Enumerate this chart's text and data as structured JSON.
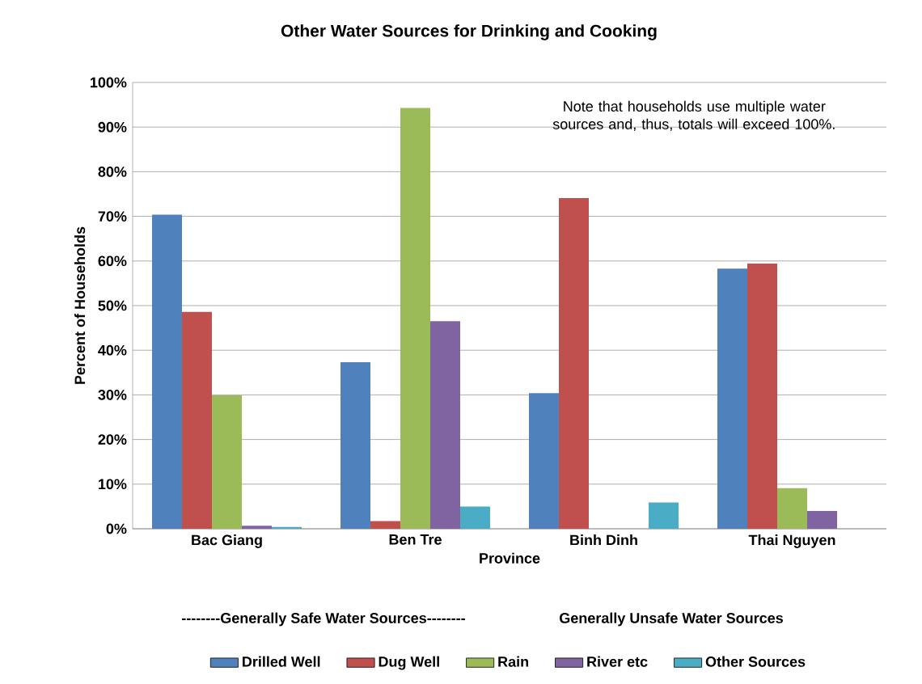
{
  "chart_data": {
    "type": "bar",
    "title": "Other Water Sources for Drinking and Cooking",
    "xlabel": "Province",
    "ylabel": "Percent of Households",
    "categories": [
      "Bac Giang",
      "Ben Tre",
      "Binh Dinh",
      "Thai Nguyen"
    ],
    "series": [
      {
        "name": "Drilled Well",
        "color": "#4f81bd",
        "values": [
          70.4,
          37.3,
          30.4,
          58.3
        ]
      },
      {
        "name": "Dug Well",
        "color": "#c0504d",
        "values": [
          48.6,
          1.7,
          74.1,
          59.4
        ]
      },
      {
        "name": "Rain",
        "color": "#9bbb59",
        "values": [
          29.9,
          94.3,
          null,
          9.1
        ]
      },
      {
        "name": "River etc",
        "color": "#8064a2",
        "values": [
          0.7,
          46.5,
          null,
          4.0
        ]
      },
      {
        "name": "Other Sources",
        "color": "#4bacc6",
        "values": [
          0.4,
          5.0,
          5.9,
          null
        ]
      }
    ],
    "ylim": [
      0,
      100
    ],
    "yticks": [
      {
        "value": 0,
        "label": "0%"
      },
      {
        "value": 10,
        "label": "10%"
      },
      {
        "value": 20,
        "label": "20%"
      },
      {
        "value": 30,
        "label": "30%"
      },
      {
        "value": 40,
        "label": "40%"
      },
      {
        "value": 50,
        "label": "50%"
      },
      {
        "value": 60,
        "label": "60%"
      },
      {
        "value": 70,
        "label": "70%"
      },
      {
        "value": 80,
        "label": "80%"
      },
      {
        "value": 90,
        "label": "90%"
      },
      {
        "value": 100,
        "label": "100%"
      }
    ],
    "grid": "y",
    "legend": "bottom",
    "annotations": [
      "Note that households use multiple water sources and, thus, totals will exceed  100%.",
      "--------Generally  Safe Water Sources--------",
      "Generally Unsafe  Water Sources"
    ]
  }
}
